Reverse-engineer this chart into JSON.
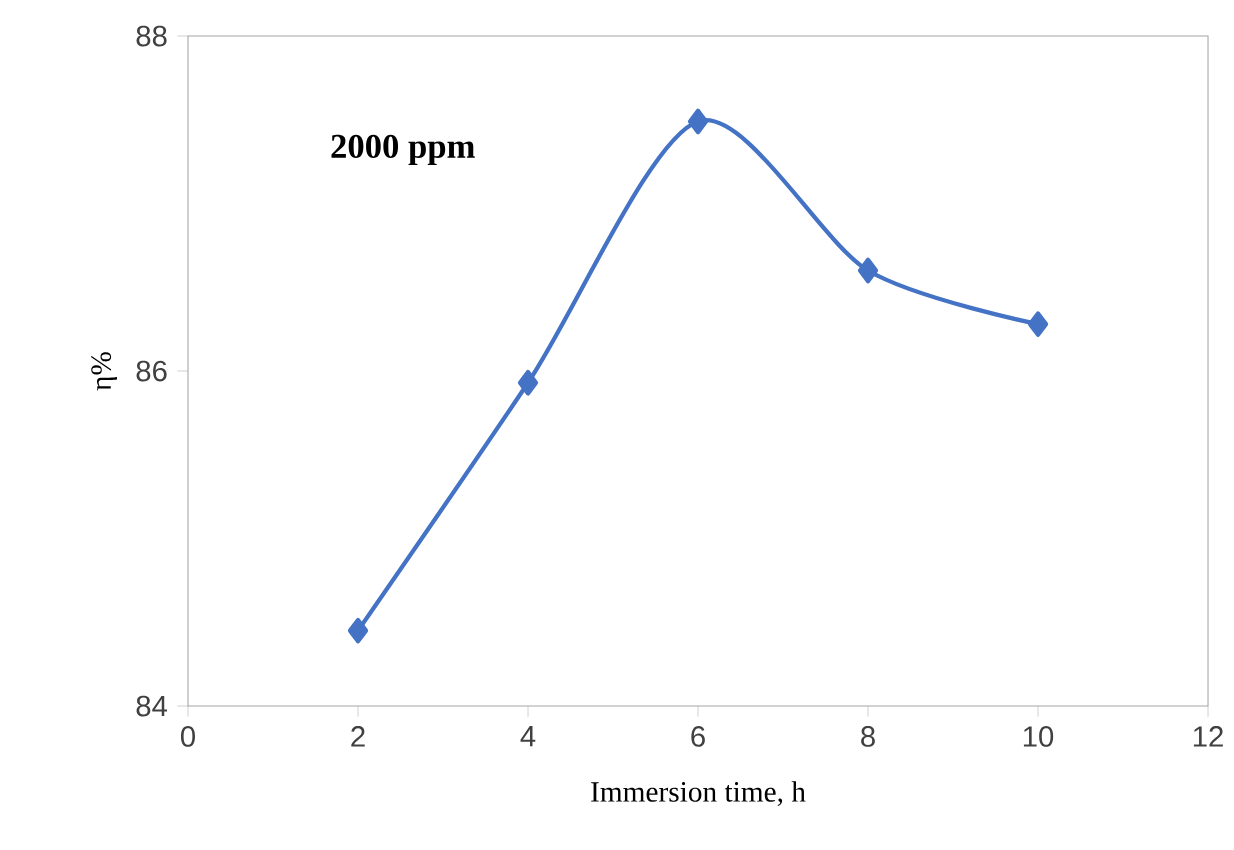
{
  "chart_data": {
    "type": "line",
    "xlabel": "Immersion time, h",
    "ylabel": "η%",
    "annotations": [
      "**2000 ppm**"
    ],
    "x": [
      2,
      4,
      6,
      8,
      10
    ],
    "series": [
      {
        "color": "#4472c4",
        "values": [
          84.45,
          85.93,
          87.49,
          86.6,
          86.28
        ]
      }
    ],
    "xlim": [
      0,
      12
    ],
    "xticks": [
      0,
      2,
      4,
      6,
      8,
      10,
      12
    ],
    "ylim": [
      84,
      88
    ],
    "yticks": [
      84,
      86,
      88
    ],
    "marker": "diamond",
    "line_style": "solid"
  }
}
